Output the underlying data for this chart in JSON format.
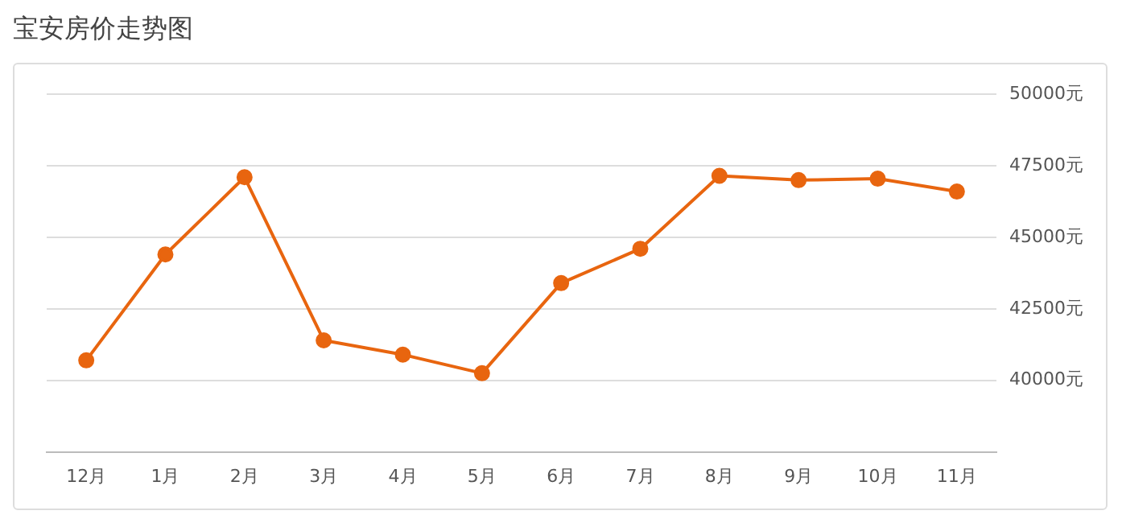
{
  "chart_data": {
    "type": "line",
    "title": "宝安房价走势图",
    "categories": [
      "12月",
      "1月",
      "2月",
      "3月",
      "4月",
      "5月",
      "6月",
      "7月",
      "8月",
      "9月",
      "10月",
      "11月"
    ],
    "series": [
      {
        "color": "#e8650f",
        "values": [
          40700,
          44400,
          47100,
          41400,
          40900,
          40250,
          43400,
          44600,
          47150,
          47000,
          47050,
          46600
        ]
      }
    ],
    "ylim": [
      37500,
      50000
    ],
    "yticks": [
      {
        "value": 40000,
        "label": "40000元"
      },
      {
        "value": 42500,
        "label": "42500元"
      },
      {
        "value": 45000,
        "label": "45000元"
      },
      {
        "value": 47500,
        "label": "47500元"
      },
      {
        "value": 50000,
        "label": "50000元"
      }
    ],
    "grid": "y",
    "marker": "circle",
    "line_style": "solid",
    "legend": false
  }
}
